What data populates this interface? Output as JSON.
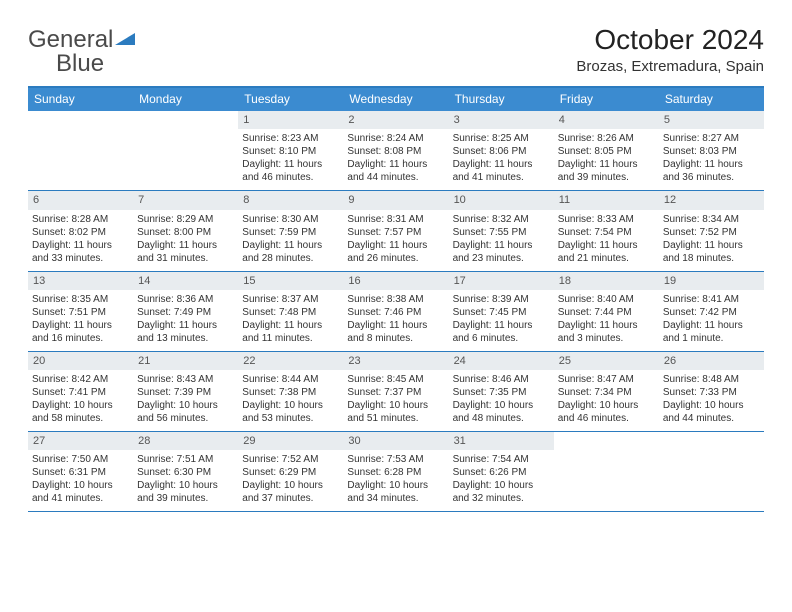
{
  "logo": {
    "part1": "General",
    "part2": "Blue"
  },
  "title": "October 2024",
  "subtitle": "Brozas, Extremadura, Spain",
  "colors": {
    "header_bg": "#3b8bd0",
    "border": "#2b7bbf",
    "daynum_bg": "#e8ecef",
    "text": "#333333"
  },
  "day_headers": [
    "Sunday",
    "Monday",
    "Tuesday",
    "Wednesday",
    "Thursday",
    "Friday",
    "Saturday"
  ],
  "weeks": [
    [
      null,
      null,
      {
        "d": "1",
        "sr": "Sunrise: 8:23 AM",
        "ss": "Sunset: 8:10 PM",
        "dl1": "Daylight: 11 hours",
        "dl2": "and 46 minutes."
      },
      {
        "d": "2",
        "sr": "Sunrise: 8:24 AM",
        "ss": "Sunset: 8:08 PM",
        "dl1": "Daylight: 11 hours",
        "dl2": "and 44 minutes."
      },
      {
        "d": "3",
        "sr": "Sunrise: 8:25 AM",
        "ss": "Sunset: 8:06 PM",
        "dl1": "Daylight: 11 hours",
        "dl2": "and 41 minutes."
      },
      {
        "d": "4",
        "sr": "Sunrise: 8:26 AM",
        "ss": "Sunset: 8:05 PM",
        "dl1": "Daylight: 11 hours",
        "dl2": "and 39 minutes."
      },
      {
        "d": "5",
        "sr": "Sunrise: 8:27 AM",
        "ss": "Sunset: 8:03 PM",
        "dl1": "Daylight: 11 hours",
        "dl2": "and 36 minutes."
      }
    ],
    [
      {
        "d": "6",
        "sr": "Sunrise: 8:28 AM",
        "ss": "Sunset: 8:02 PM",
        "dl1": "Daylight: 11 hours",
        "dl2": "and 33 minutes."
      },
      {
        "d": "7",
        "sr": "Sunrise: 8:29 AM",
        "ss": "Sunset: 8:00 PM",
        "dl1": "Daylight: 11 hours",
        "dl2": "and 31 minutes."
      },
      {
        "d": "8",
        "sr": "Sunrise: 8:30 AM",
        "ss": "Sunset: 7:59 PM",
        "dl1": "Daylight: 11 hours",
        "dl2": "and 28 minutes."
      },
      {
        "d": "9",
        "sr": "Sunrise: 8:31 AM",
        "ss": "Sunset: 7:57 PM",
        "dl1": "Daylight: 11 hours",
        "dl2": "and 26 minutes."
      },
      {
        "d": "10",
        "sr": "Sunrise: 8:32 AM",
        "ss": "Sunset: 7:55 PM",
        "dl1": "Daylight: 11 hours",
        "dl2": "and 23 minutes."
      },
      {
        "d": "11",
        "sr": "Sunrise: 8:33 AM",
        "ss": "Sunset: 7:54 PM",
        "dl1": "Daylight: 11 hours",
        "dl2": "and 21 minutes."
      },
      {
        "d": "12",
        "sr": "Sunrise: 8:34 AM",
        "ss": "Sunset: 7:52 PM",
        "dl1": "Daylight: 11 hours",
        "dl2": "and 18 minutes."
      }
    ],
    [
      {
        "d": "13",
        "sr": "Sunrise: 8:35 AM",
        "ss": "Sunset: 7:51 PM",
        "dl1": "Daylight: 11 hours",
        "dl2": "and 16 minutes."
      },
      {
        "d": "14",
        "sr": "Sunrise: 8:36 AM",
        "ss": "Sunset: 7:49 PM",
        "dl1": "Daylight: 11 hours",
        "dl2": "and 13 minutes."
      },
      {
        "d": "15",
        "sr": "Sunrise: 8:37 AM",
        "ss": "Sunset: 7:48 PM",
        "dl1": "Daylight: 11 hours",
        "dl2": "and 11 minutes."
      },
      {
        "d": "16",
        "sr": "Sunrise: 8:38 AM",
        "ss": "Sunset: 7:46 PM",
        "dl1": "Daylight: 11 hours",
        "dl2": "and 8 minutes."
      },
      {
        "d": "17",
        "sr": "Sunrise: 8:39 AM",
        "ss": "Sunset: 7:45 PM",
        "dl1": "Daylight: 11 hours",
        "dl2": "and 6 minutes."
      },
      {
        "d": "18",
        "sr": "Sunrise: 8:40 AM",
        "ss": "Sunset: 7:44 PM",
        "dl1": "Daylight: 11 hours",
        "dl2": "and 3 minutes."
      },
      {
        "d": "19",
        "sr": "Sunrise: 8:41 AM",
        "ss": "Sunset: 7:42 PM",
        "dl1": "Daylight: 11 hours",
        "dl2": "and 1 minute."
      }
    ],
    [
      {
        "d": "20",
        "sr": "Sunrise: 8:42 AM",
        "ss": "Sunset: 7:41 PM",
        "dl1": "Daylight: 10 hours",
        "dl2": "and 58 minutes."
      },
      {
        "d": "21",
        "sr": "Sunrise: 8:43 AM",
        "ss": "Sunset: 7:39 PM",
        "dl1": "Daylight: 10 hours",
        "dl2": "and 56 minutes."
      },
      {
        "d": "22",
        "sr": "Sunrise: 8:44 AM",
        "ss": "Sunset: 7:38 PM",
        "dl1": "Daylight: 10 hours",
        "dl2": "and 53 minutes."
      },
      {
        "d": "23",
        "sr": "Sunrise: 8:45 AM",
        "ss": "Sunset: 7:37 PM",
        "dl1": "Daylight: 10 hours",
        "dl2": "and 51 minutes."
      },
      {
        "d": "24",
        "sr": "Sunrise: 8:46 AM",
        "ss": "Sunset: 7:35 PM",
        "dl1": "Daylight: 10 hours",
        "dl2": "and 48 minutes."
      },
      {
        "d": "25",
        "sr": "Sunrise: 8:47 AM",
        "ss": "Sunset: 7:34 PM",
        "dl1": "Daylight: 10 hours",
        "dl2": "and 46 minutes."
      },
      {
        "d": "26",
        "sr": "Sunrise: 8:48 AM",
        "ss": "Sunset: 7:33 PM",
        "dl1": "Daylight: 10 hours",
        "dl2": "and 44 minutes."
      }
    ],
    [
      {
        "d": "27",
        "sr": "Sunrise: 7:50 AM",
        "ss": "Sunset: 6:31 PM",
        "dl1": "Daylight: 10 hours",
        "dl2": "and 41 minutes."
      },
      {
        "d": "28",
        "sr": "Sunrise: 7:51 AM",
        "ss": "Sunset: 6:30 PM",
        "dl1": "Daylight: 10 hours",
        "dl2": "and 39 minutes."
      },
      {
        "d": "29",
        "sr": "Sunrise: 7:52 AM",
        "ss": "Sunset: 6:29 PM",
        "dl1": "Daylight: 10 hours",
        "dl2": "and 37 minutes."
      },
      {
        "d": "30",
        "sr": "Sunrise: 7:53 AM",
        "ss": "Sunset: 6:28 PM",
        "dl1": "Daylight: 10 hours",
        "dl2": "and 34 minutes."
      },
      {
        "d": "31",
        "sr": "Sunrise: 7:54 AM",
        "ss": "Sunset: 6:26 PM",
        "dl1": "Daylight: 10 hours",
        "dl2": "and 32 minutes."
      },
      null,
      null
    ]
  ]
}
